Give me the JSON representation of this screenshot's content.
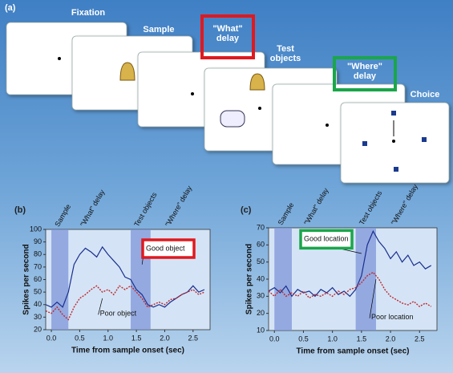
{
  "panel_a": {
    "label": "(a)",
    "steps": [
      "Fixation",
      "Sample",
      "\"What\" delay",
      "Test objects",
      "\"Where\" delay",
      "Choice"
    ]
  },
  "chart_data": [
    {
      "type": "line",
      "panel": "(b)",
      "xlabel": "Time from sample onset (sec)",
      "ylabel": "Spikes per second",
      "phases": [
        "Sample",
        "\"What\" delay",
        "Test objects",
        "\"Where\" delay"
      ],
      "shaded": [
        [
          0,
          0.3
        ],
        [
          1.4,
          1.75
        ]
      ],
      "x": [
        -0.1,
        0,
        0.1,
        0.2,
        0.3,
        0.4,
        0.5,
        0.6,
        0.7,
        0.8,
        0.9,
        1.0,
        1.1,
        1.2,
        1.3,
        1.4,
        1.5,
        1.6,
        1.7,
        1.8,
        1.9,
        2.0,
        2.1,
        2.2,
        2.3,
        2.4,
        2.5,
        2.6,
        2.7
      ],
      "series": [
        {
          "name": "Good object",
          "color": "#1a2f8f",
          "dash": false,
          "values": [
            40,
            38,
            42,
            38,
            50,
            72,
            80,
            85,
            82,
            78,
            86,
            80,
            75,
            70,
            62,
            60,
            52,
            48,
            40,
            38,
            40,
            38,
            42,
            45,
            48,
            50,
            55,
            50,
            52
          ]
        },
        {
          "name": "Poor object",
          "color": "#c0282d",
          "dash": true,
          "values": [
            35,
            33,
            38,
            32,
            28,
            38,
            45,
            48,
            52,
            55,
            50,
            52,
            48,
            55,
            52,
            55,
            50,
            45,
            38,
            40,
            42,
            40,
            44,
            45,
            48,
            50,
            52,
            48,
            50
          ]
        }
      ],
      "xlim": [
        -0.1,
        2.8
      ],
      "xticks": [
        {
          "value": 0,
          "label": "0.0"
        },
        0.5,
        {
          "value": 1,
          "label": "1.0"
        },
        1.5,
        {
          "value": 2,
          "label": "2.0"
        },
        2.5
      ],
      "ylim": [
        20,
        100
      ],
      "yticks": [
        20,
        30,
        40,
        50,
        60,
        70,
        80,
        90,
        100
      ],
      "box_color": "#e0191f"
    },
    {
      "type": "line",
      "panel": "(c)",
      "xlabel": "Time from sample onset (sec)",
      "ylabel": "Spikes per second",
      "phases": [
        "Sample",
        "\"What\" delay",
        "Test objects",
        "\"Where\" delay"
      ],
      "shaded": [
        [
          0,
          0.3
        ],
        [
          1.4,
          1.75
        ]
      ],
      "x": [
        -0.1,
        0,
        0.1,
        0.2,
        0.3,
        0.4,
        0.5,
        0.6,
        0.7,
        0.8,
        0.9,
        1.0,
        1.1,
        1.2,
        1.3,
        1.4,
        1.5,
        1.6,
        1.7,
        1.8,
        1.9,
        2.0,
        2.1,
        2.2,
        2.3,
        2.4,
        2.5,
        2.6,
        2.7
      ],
      "series": [
        {
          "name": "Good location",
          "color": "#1a2f8f",
          "dash": false,
          "values": [
            33,
            35,
            32,
            36,
            30,
            34,
            32,
            33,
            30,
            34,
            32,
            35,
            31,
            33,
            30,
            34,
            42,
            60,
            68,
            62,
            58,
            52,
            56,
            50,
            54,
            48,
            50,
            46,
            48
          ]
        },
        {
          "name": "Poor location",
          "color": "#c0282d",
          "dash": true,
          "values": [
            33,
            30,
            34,
            30,
            32,
            30,
            33,
            29,
            31,
            30,
            32,
            30,
            33,
            31,
            34,
            35,
            38,
            42,
            44,
            40,
            34,
            30,
            28,
            26,
            25,
            27,
            24,
            26,
            24
          ]
        }
      ],
      "xlim": [
        -0.1,
        2.8
      ],
      "xticks": [
        {
          "value": 0,
          "label": "0.0"
        },
        0.5,
        {
          "value": 1,
          "label": "1.0"
        },
        1.5,
        {
          "value": 2,
          "label": "2.0"
        },
        2.5
      ],
      "ylim": [
        10,
        70
      ],
      "yticks": [
        10,
        20,
        30,
        40,
        50,
        60,
        70
      ],
      "box_color": "#1aa64a"
    }
  ]
}
